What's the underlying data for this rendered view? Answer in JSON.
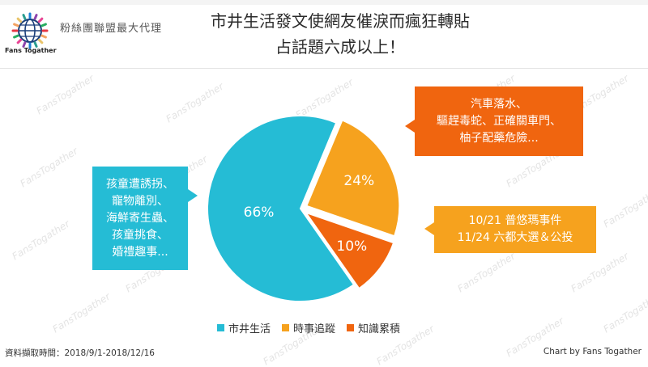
{
  "header": {
    "brand_text": "粉絲團聯盟最大代理",
    "logo_caption": "Fans Togather",
    "title_line1": "市井生活發文使網友催淚而瘋狂轉貼",
    "title_line2": "占話題六成以上！"
  },
  "chart_data": {
    "type": "pie",
    "title": "市井生活發文使網友催淚而瘋狂轉貼 占話題六成以上！",
    "legend_position": "bottom",
    "slices": [
      {
        "name": "市井生活",
        "value": 66,
        "label": "66%",
        "color": "#25bcd5"
      },
      {
        "name": "時事追蹤",
        "value": 24,
        "label": "24%",
        "color": "#f6a21e"
      },
      {
        "name": "知識累積",
        "value": 10,
        "label": "10%",
        "color": "#f0650f"
      }
    ],
    "annotations": [
      {
        "slice": "市井生活",
        "color": "#25bcd5",
        "lines": [
          "孩童遭誘拐、",
          "寵物離別、",
          "海鮮寄生蟲、",
          "孩童挑食、",
          "婚禮趣事..."
        ]
      },
      {
        "slice": "時事追蹤",
        "color": "#f6a21e",
        "lines": [
          "10/21 普悠瑪事件",
          "11/24 六都大選＆公投"
        ]
      },
      {
        "slice": "知識累積",
        "color": "#f0650f",
        "lines": [
          "汽車落水、",
          "驅趕毒蛇、正確關車門、",
          "柚子配藥危險..."
        ]
      }
    ]
  },
  "footer": {
    "source": "資料擷取時間：2018/9/1-2018/12/16",
    "credit": "Chart by Fans Togather"
  },
  "watermark_text": "FansTogather"
}
